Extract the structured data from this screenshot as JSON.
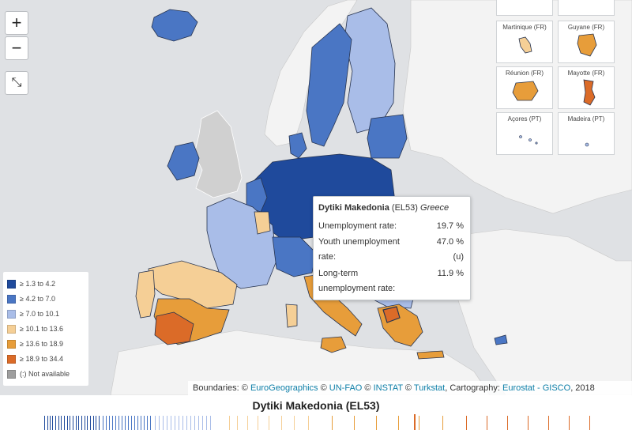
{
  "zoom_controls": {
    "zoom_in": "+",
    "zoom_out": "−",
    "reset_icon": "⤡"
  },
  "legend": {
    "items": [
      {
        "label": "≥ 1.3 to 4.2",
        "color": "#1f4a9c"
      },
      {
        "label": "≥ 4.2 to 7.0",
        "color": "#4a76c4"
      },
      {
        "label": "≥ 7.0 to 10.1",
        "color": "#a9bde8"
      },
      {
        "label": "≥ 10.1 to 13.6",
        "color": "#f5cf96"
      },
      {
        "label": "≥ 13.6 to 18.9",
        "color": "#e79d3a"
      },
      {
        "label": "≥ 18.9 to 34.4",
        "color": "#db6b28"
      },
      {
        "label": "(:) Not available",
        "color": "#9e9e9e"
      }
    ]
  },
  "insets": [
    {
      "label": "Martinique (FR)",
      "color": "#f5cf96"
    },
    {
      "label": "Guyane (FR)",
      "color": "#e79d3a"
    },
    {
      "label": "Réunion (FR)",
      "color": "#e79d3a"
    },
    {
      "label": "Mayotte (FR)",
      "color": "#db6b28"
    },
    {
      "label": "Açores (PT)",
      "color": "#a9bde8"
    },
    {
      "label": "Madeira (PT)",
      "color": "#a9bde8"
    }
  ],
  "tooltip": {
    "region": "Dytiki Makedonia",
    "code": "(EL53)",
    "country": "Greece",
    "unemployment_label": "Unemployment rate:",
    "unemployment_value": "19.7 %",
    "youth_label_1": "Youth unemployment",
    "youth_label_2": "rate:",
    "youth_value": "47.0 %",
    "youth_flag": "(u)",
    "longterm_label_1": "Long-term",
    "longterm_label_2": "unemployment rate:",
    "longterm_value": "11.9 %"
  },
  "attribution": {
    "boundaries": "Boundaries: ©",
    "eurogeographics": "EuroGeographics",
    "c1": "©",
    "unfao": "UN-FAO",
    "c2": "©",
    "instat": "INSTAT",
    "c3": "©",
    "turkstat": "Turkstat",
    "cartography": ", Cartography:",
    "eurostat": "Eurostat - GISCO",
    "year": ", 2018"
  },
  "strip_title": "Dytiki Makedonia (EL53)",
  "colors": {
    "sea": "#dfe1e4",
    "land_outside": "#f3f3f3",
    "no_data": "#d0d0d0",
    "border": "#26334f",
    "c1": "#1f4a9c",
    "c2": "#4a76c4",
    "c3": "#a9bde8",
    "c4": "#f5cf96",
    "c5": "#e79d3a",
    "c6": "#db6b28"
  }
}
